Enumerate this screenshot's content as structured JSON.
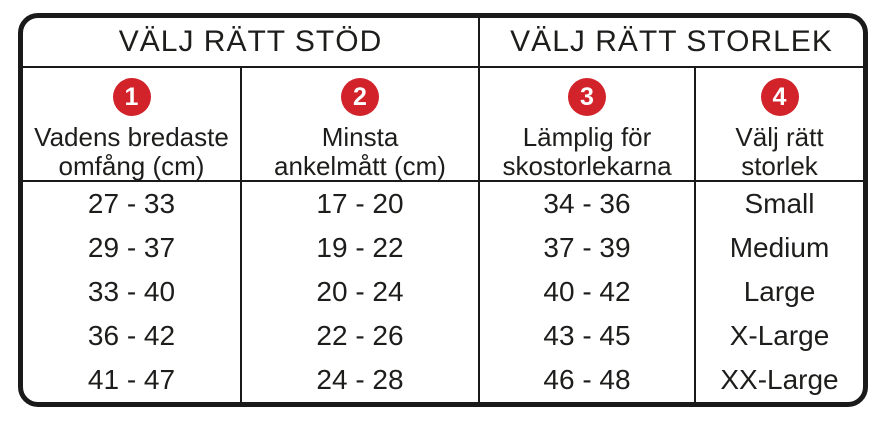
{
  "chart_data": {
    "type": "table",
    "title": "",
    "group_headers": [
      {
        "label": "VÄLJ RÄTT STÖD",
        "span_columns": 2
      },
      {
        "label": "VÄLJ RÄTT STORLEK",
        "span_columns": 2
      }
    ],
    "columns": [
      {
        "step": "1",
        "label": "Vadens bredaste omfång (cm)",
        "lines": [
          "Vadens bredaste",
          "omfång (cm)"
        ]
      },
      {
        "step": "2",
        "label": "Minsta ankelmått (cm)",
        "lines": [
          "Minsta",
          "ankelmått (cm)"
        ]
      },
      {
        "step": "3",
        "label": "Lämplig för skostorlekarna",
        "lines": [
          "Lämplig för",
          "skostorlekarna"
        ]
      },
      {
        "step": "4",
        "label": "Välj rätt storlek",
        "lines": [
          "Välj rätt",
          "storlek"
        ]
      }
    ],
    "rows": [
      [
        "27 - 33",
        "17 - 20",
        "34 - 36",
        "Small"
      ],
      [
        "29 - 37",
        "19 - 22",
        "37 - 39",
        "Medium"
      ],
      [
        "33 - 40",
        "20 - 24",
        "40 - 42",
        "Large"
      ],
      [
        "36 - 42",
        "22 - 26",
        "43 - 45",
        "X-Large"
      ],
      [
        "41 - 47",
        "24 - 28",
        "46 - 48",
        "XX-Large"
      ]
    ],
    "layout": {
      "grid_lines": "vertical column separators and header underlines only, no row separators",
      "outer_border": "thick black rounded rectangle"
    }
  },
  "colors": {
    "badge_red": "#d2222a",
    "line_black": "#1a1a1a",
    "text_black": "#1d1d1b",
    "background": "#ffffff"
  }
}
